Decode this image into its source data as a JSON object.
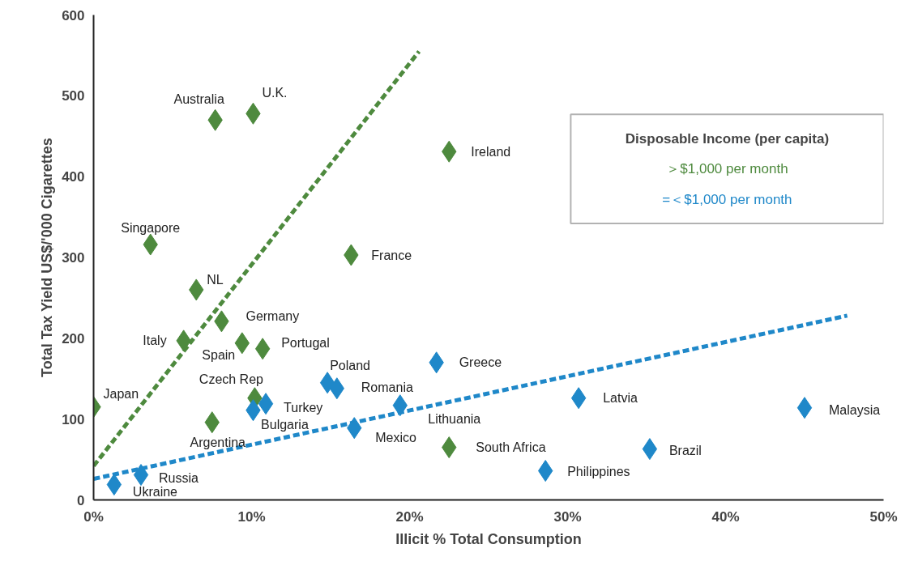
{
  "chart_data": {
    "type": "scatter",
    "xlabel": "Illicit % Total Consumption",
    "ylabel": "Total Tax Yield US$/'000 Cigarettes",
    "legend_title": "Disposable Income (per capita)",
    "legend": "top right",
    "grid": false,
    "xlim": [
      0,
      50
    ],
    "ylim": [
      0,
      600
    ],
    "xticks": [
      {
        "value": 0,
        "label": "0%"
      },
      {
        "value": 10,
        "label": "10%"
      },
      {
        "value": 20,
        "label": "20%"
      },
      {
        "value": 30,
        "label": "30%"
      },
      {
        "value": 40,
        "label": "40%"
      },
      {
        "value": 50,
        "label": "50%"
      }
    ],
    "yticks": [
      0,
      100,
      200,
      300,
      400,
      500,
      600
    ],
    "series": [
      {
        "name": "＞$1,000 per month",
        "color": "#4e8a3e",
        "marker": "diamond",
        "x": [
          7.7,
          10.1,
          22.5,
          3.6,
          16.3,
          6.5,
          8.1,
          5.7,
          9.4,
          10.7,
          0,
          10.2,
          7.5,
          22.5
        ],
        "values": [
          470,
          478,
          431,
          316,
          303,
          260,
          221,
          197,
          194,
          187,
          115,
          126,
          96,
          65
        ]
      },
      {
        "name": "=＜$1,000 per month",
        "color": "#1f88c9",
        "marker": "diamond",
        "x": [
          21.7,
          14.8,
          15.4,
          10.9,
          10.1,
          19.4,
          16.5,
          30.7,
          45.0,
          35.2,
          28.6,
          3.0,
          1.3
        ],
        "values": [
          170,
          145,
          138,
          119,
          111,
          117,
          89,
          126,
          114,
          63,
          36,
          31,
          19
        ]
      },
      {
        "type": "line",
        "color": "#4e8a3e",
        "line_style": "dashed",
        "marker": "none",
        "x": [
          0,
          20.6
        ],
        "values": [
          42,
          555
        ]
      },
      {
        "type": "line",
        "color": "#1f88c9",
        "line_style": "dashed",
        "marker": "none",
        "x": [
          0,
          47.7
        ],
        "values": [
          26,
          228
        ]
      }
    ],
    "annotations": [
      {
        "text": "Australia",
        "x": 7.7,
        "y": 470
      },
      {
        "text": "U.K.",
        "x": 10.1,
        "y": 478
      },
      {
        "text": "Ireland",
        "x": 22.5,
        "y": 431
      },
      {
        "text": "Singapore",
        "x": 3.6,
        "y": 316
      },
      {
        "text": "France",
        "x": 16.3,
        "y": 303
      },
      {
        "text": "NL",
        "x": 6.5,
        "y": 260
      },
      {
        "text": "Germany",
        "x": 8.1,
        "y": 221
      },
      {
        "text": "Italy",
        "x": 5.7,
        "y": 197
      },
      {
        "text": "Spain",
        "x": 9.4,
        "y": 194
      },
      {
        "text": "Portugal",
        "x": 10.7,
        "y": 187
      },
      {
        "text": "Japan",
        "x": 0,
        "y": 115
      },
      {
        "text": "Czech Rep",
        "x": 10.2,
        "y": 126
      },
      {
        "text": "Argentina",
        "x": 7.5,
        "y": 96
      },
      {
        "text": "South Africa",
        "x": 22.5,
        "y": 65
      },
      {
        "text": "Greece",
        "x": 21.7,
        "y": 170
      },
      {
        "text": "Poland",
        "x": 14.8,
        "y": 145
      },
      {
        "text": "Romania",
        "x": 15.4,
        "y": 138
      },
      {
        "text": "Turkey",
        "x": 10.9,
        "y": 119
      },
      {
        "text": "Bulgaria",
        "x": 10.1,
        "y": 111
      },
      {
        "text": "Lithuania",
        "x": 19.4,
        "y": 117
      },
      {
        "text": "Mexico",
        "x": 16.5,
        "y": 89
      },
      {
        "text": "Latvia",
        "x": 30.7,
        "y": 126
      },
      {
        "text": "Malaysia",
        "x": 45.0,
        "y": 114
      },
      {
        "text": "Brazil",
        "x": 35.2,
        "y": 63
      },
      {
        "text": "Philippines",
        "x": 28.6,
        "y": 36
      },
      {
        "text": "Russia",
        "x": 3.0,
        "y": 31
      },
      {
        "text": "Ukraine",
        "x": 1.3,
        "y": 19
      }
    ]
  }
}
